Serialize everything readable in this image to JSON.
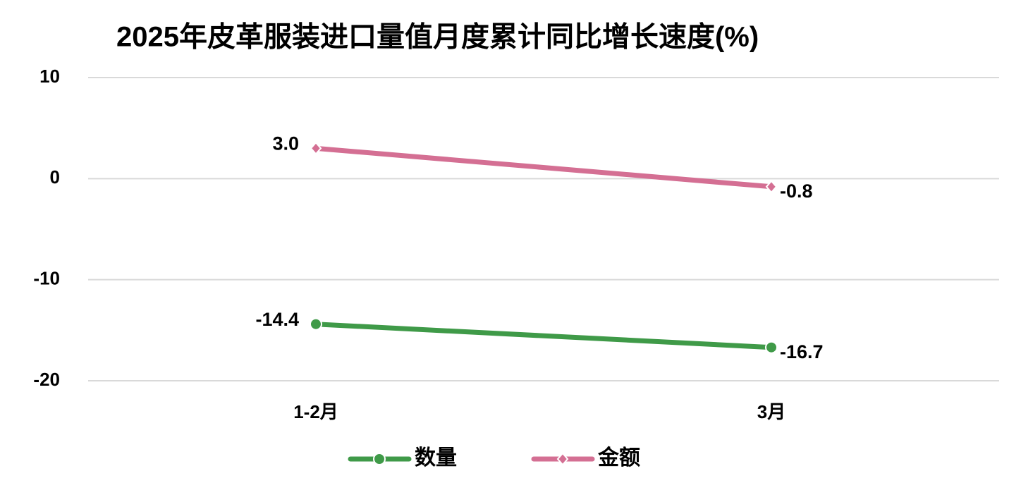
{
  "chart_data": {
    "type": "line",
    "title": "2025年皮革服装进口量值月度累计同比增长速度(%)",
    "categories": [
      "1-2月",
      "3月"
    ],
    "series": [
      {
        "name": "数量",
        "color": "#3f9a48",
        "marker": "circle",
        "values": [
          -14.4,
          -16.7
        ]
      },
      {
        "name": "金额",
        "color": "#d46f93",
        "marker": "diamond",
        "values": [
          3,
          -0.8
        ],
        "value_labels": [
          "3.0",
          "-0.8"
        ]
      }
    ],
    "ylim": [
      -20,
      10
    ],
    "yticks": [
      -20,
      -10,
      0,
      10
    ],
    "grid": true,
    "legend": "bottom"
  }
}
